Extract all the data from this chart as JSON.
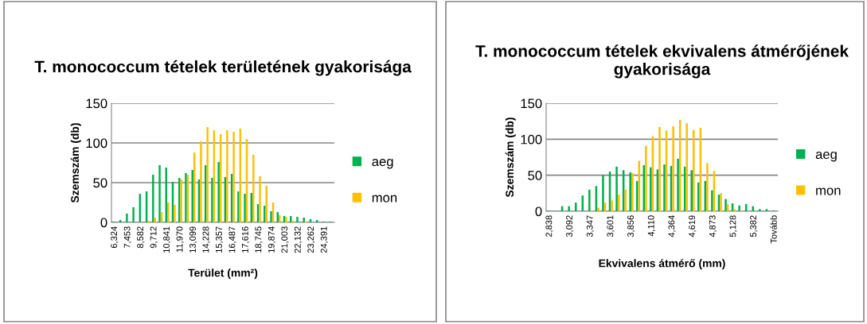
{
  "chart_data": [
    {
      "type": "bar",
      "title": "T. monococcum tételek területének gyakorisága",
      "xlabel": "Terület (mm²)",
      "ylabel": "Szemszám (db)",
      "categories": [
        "6,324",
        null,
        "7,453",
        null,
        "8,582",
        null,
        "9,712",
        null,
        "10,841",
        null,
        "11,970",
        null,
        "13,099",
        null,
        "14,228",
        null,
        "15,357",
        null,
        "16,487",
        null,
        "17,616",
        null,
        "18,745",
        null,
        "19,874",
        null,
        "21,003",
        null,
        "22,132",
        null,
        "23,262",
        null,
        "24,391",
        null
      ],
      "series": [
        {
          "name": "aeg",
          "color": "#00b050",
          "values": [
            1,
            3,
            11,
            19,
            36,
            39,
            60,
            72,
            69,
            51,
            56,
            62,
            66,
            54,
            72,
            56,
            76,
            57,
            61,
            39,
            36,
            37,
            23,
            21,
            14,
            13,
            8,
            8,
            7,
            6,
            4,
            3,
            1,
            1
          ]
        },
        {
          "name": "mon",
          "color": "#ffc000",
          "values": [
            0,
            0,
            0,
            0,
            0,
            2,
            6,
            13,
            25,
            22,
            54,
            60,
            88,
            102,
            120,
            116,
            111,
            116,
            114,
            118,
            105,
            85,
            58,
            46,
            25,
            9,
            7,
            2,
            0,
            1,
            0,
            0,
            0,
            0
          ]
        }
      ],
      "ylim": [
        0,
        150
      ],
      "yticks": [
        0,
        50,
        100,
        150
      ],
      "grid": "y",
      "legend": "right"
    },
    {
      "type": "bar",
      "title": "T. monococcum tételek ekvivalens átmérőjének gyakorisága",
      "xlabel": "Ekvivalens átmérő (mm)",
      "ylabel": "Szemszám (db)",
      "categories": [
        "2,838",
        null,
        null,
        "3,092",
        null,
        null,
        "3,347",
        null,
        null,
        "3,601",
        null,
        null,
        "3,856",
        null,
        null,
        "4,110",
        null,
        null,
        "4,364",
        null,
        null,
        "4,619",
        null,
        null,
        "4,873",
        null,
        null,
        "5,128",
        null,
        null,
        "5,382",
        null,
        null,
        "Tovább"
      ],
      "series": [
        {
          "name": "aeg",
          "color": "#00b050",
          "values": [
            1,
            0,
            7,
            7,
            12,
            22,
            30,
            35,
            50,
            55,
            62,
            57,
            54,
            42,
            64,
            61,
            58,
            65,
            63,
            73,
            62,
            57,
            40,
            42,
            29,
            23,
            17,
            11,
            8,
            10,
            7,
            3,
            3,
            1
          ]
        },
        {
          "name": "mon",
          "color": "#ffc000",
          "values": [
            0,
            0,
            0,
            0,
            0,
            0,
            1,
            5,
            12,
            15,
            23,
            30,
            53,
            70,
            91,
            104,
            117,
            112,
            118,
            127,
            122,
            113,
            116,
            67,
            56,
            25,
            10,
            3,
            1,
            0,
            0,
            0,
            0,
            0
          ]
        }
      ],
      "ylim": [
        0,
        150
      ],
      "yticks": [
        0,
        50,
        100,
        150
      ],
      "grid": "y",
      "legend": "right"
    }
  ]
}
